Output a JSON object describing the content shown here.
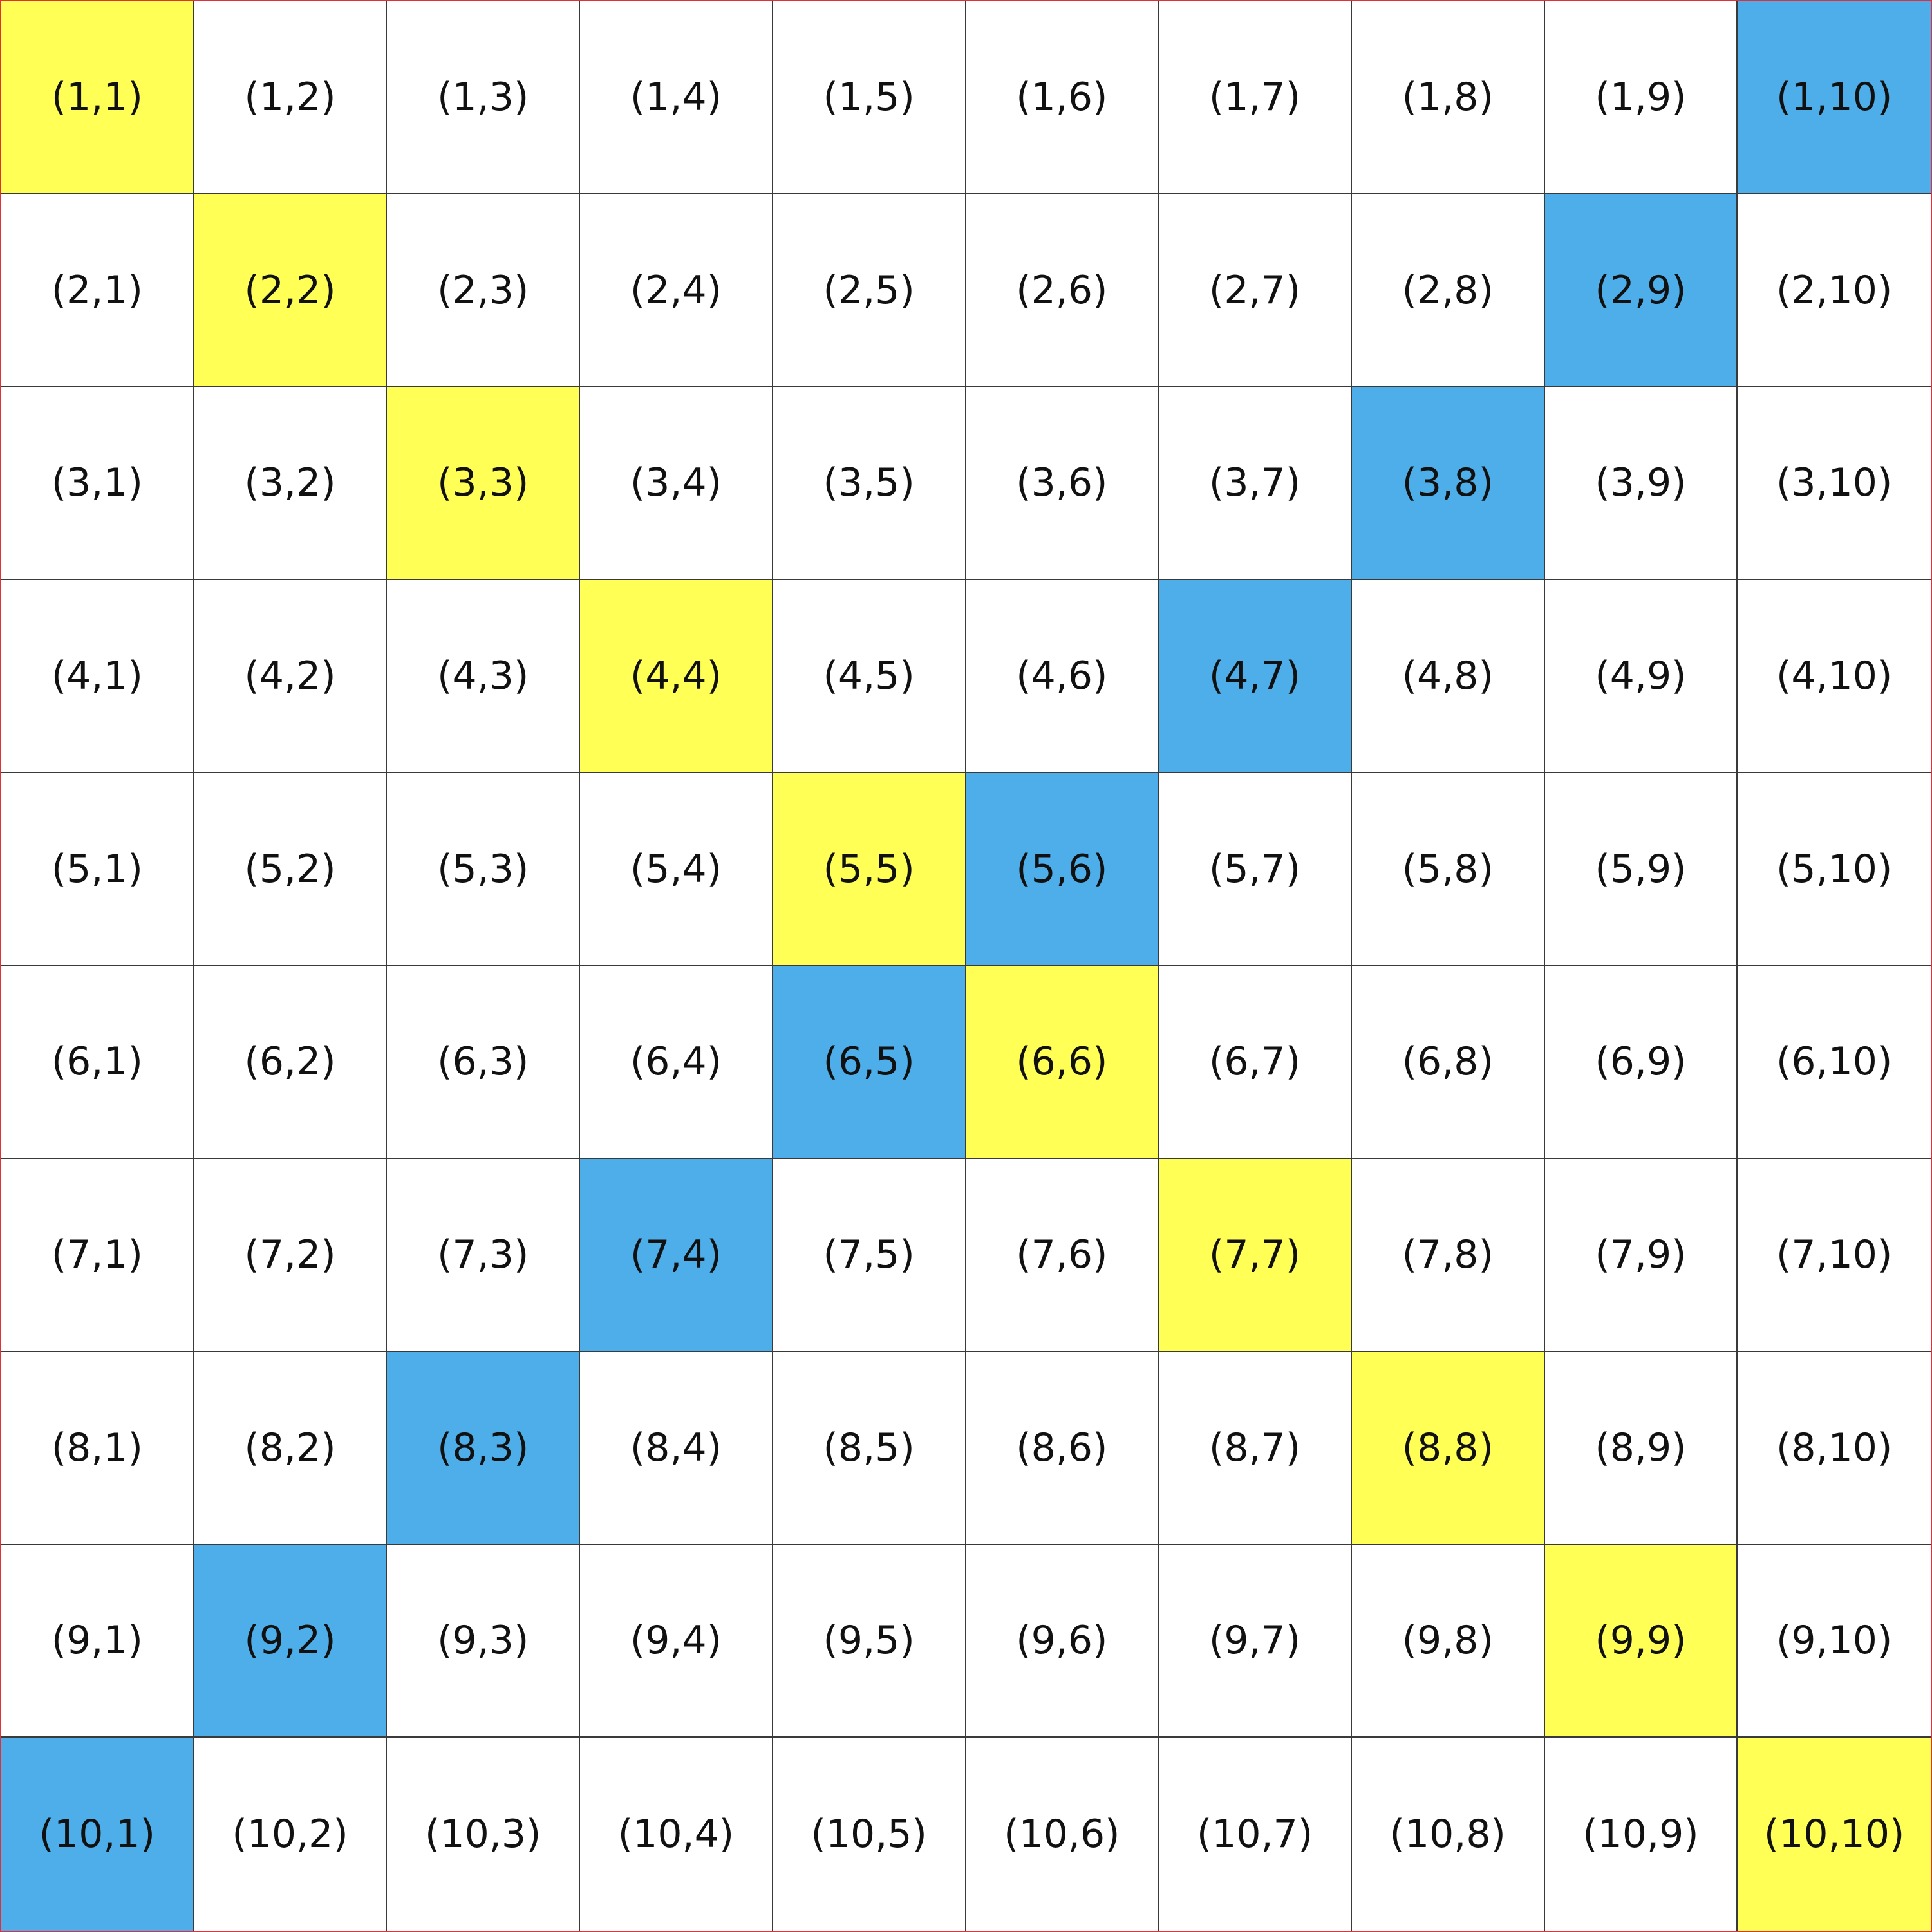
{
  "colors": {
    "default": "#ffffff",
    "main_diagonal": "#ffff55",
    "anti_diagonal": "#4eaee9",
    "text": "#111111",
    "grid_line": "#3a3a3a",
    "outer_border": "#e0303a"
  },
  "grid": {
    "rows": [
      {
        "cells": [
          {
            "label": "(1,1)",
            "fill": "main_diagonal"
          },
          {
            "label": "(1,2)",
            "fill": "default"
          },
          {
            "label": "(1,3)",
            "fill": "default"
          },
          {
            "label": "(1,4)",
            "fill": "default"
          },
          {
            "label": "(1,5)",
            "fill": "default"
          },
          {
            "label": "(1,6)",
            "fill": "default"
          },
          {
            "label": "(1,7)",
            "fill": "default"
          },
          {
            "label": "(1,8)",
            "fill": "default"
          },
          {
            "label": "(1,9)",
            "fill": "default"
          },
          {
            "label": "(1,10)",
            "fill": "anti_diagonal"
          }
        ]
      },
      {
        "cells": [
          {
            "label": "(2,1)",
            "fill": "default"
          },
          {
            "label": "(2,2)",
            "fill": "main_diagonal"
          },
          {
            "label": "(2,3)",
            "fill": "default"
          },
          {
            "label": "(2,4)",
            "fill": "default"
          },
          {
            "label": "(2,5)",
            "fill": "default"
          },
          {
            "label": "(2,6)",
            "fill": "default"
          },
          {
            "label": "(2,7)",
            "fill": "default"
          },
          {
            "label": "(2,8)",
            "fill": "default"
          },
          {
            "label": "(2,9)",
            "fill": "anti_diagonal"
          },
          {
            "label": "(2,10)",
            "fill": "default"
          }
        ]
      },
      {
        "cells": [
          {
            "label": "(3,1)",
            "fill": "default"
          },
          {
            "label": "(3,2)",
            "fill": "default"
          },
          {
            "label": "(3,3)",
            "fill": "main_diagonal"
          },
          {
            "label": "(3,4)",
            "fill": "default"
          },
          {
            "label": "(3,5)",
            "fill": "default"
          },
          {
            "label": "(3,6)",
            "fill": "default"
          },
          {
            "label": "(3,7)",
            "fill": "default"
          },
          {
            "label": "(3,8)",
            "fill": "anti_diagonal"
          },
          {
            "label": "(3,9)",
            "fill": "default"
          },
          {
            "label": "(3,10)",
            "fill": "default"
          }
        ]
      },
      {
        "cells": [
          {
            "label": "(4,1)",
            "fill": "default"
          },
          {
            "label": "(4,2)",
            "fill": "default"
          },
          {
            "label": "(4,3)",
            "fill": "default"
          },
          {
            "label": "(4,4)",
            "fill": "main_diagonal"
          },
          {
            "label": "(4,5)",
            "fill": "default"
          },
          {
            "label": "(4,6)",
            "fill": "default"
          },
          {
            "label": "(4,7)",
            "fill": "anti_diagonal"
          },
          {
            "label": "(4,8)",
            "fill": "default"
          },
          {
            "label": "(4,9)",
            "fill": "default"
          },
          {
            "label": "(4,10)",
            "fill": "default"
          }
        ]
      },
      {
        "cells": [
          {
            "label": "(5,1)",
            "fill": "default"
          },
          {
            "label": "(5,2)",
            "fill": "default"
          },
          {
            "label": "(5,3)",
            "fill": "default"
          },
          {
            "label": "(5,4)",
            "fill": "default"
          },
          {
            "label": "(5,5)",
            "fill": "main_diagonal"
          },
          {
            "label": "(5,6)",
            "fill": "anti_diagonal"
          },
          {
            "label": "(5,7)",
            "fill": "default"
          },
          {
            "label": "(5,8)",
            "fill": "default"
          },
          {
            "label": "(5,9)",
            "fill": "default"
          },
          {
            "label": "(5,10)",
            "fill": "default"
          }
        ]
      },
      {
        "cells": [
          {
            "label": "(6,1)",
            "fill": "default"
          },
          {
            "label": "(6,2)",
            "fill": "default"
          },
          {
            "label": "(6,3)",
            "fill": "default"
          },
          {
            "label": "(6,4)",
            "fill": "default"
          },
          {
            "label": "(6,5)",
            "fill": "anti_diagonal"
          },
          {
            "label": "(6,6)",
            "fill": "main_diagonal"
          },
          {
            "label": "(6,7)",
            "fill": "default"
          },
          {
            "label": "(6,8)",
            "fill": "default"
          },
          {
            "label": "(6,9)",
            "fill": "default"
          },
          {
            "label": "(6,10)",
            "fill": "default"
          }
        ]
      },
      {
        "cells": [
          {
            "label": "(7,1)",
            "fill": "default"
          },
          {
            "label": "(7,2)",
            "fill": "default"
          },
          {
            "label": "(7,3)",
            "fill": "default"
          },
          {
            "label": "(7,4)",
            "fill": "anti_diagonal"
          },
          {
            "label": "(7,5)",
            "fill": "default"
          },
          {
            "label": "(7,6)",
            "fill": "default"
          },
          {
            "label": "(7,7)",
            "fill": "main_diagonal"
          },
          {
            "label": "(7,8)",
            "fill": "default"
          },
          {
            "label": "(7,9)",
            "fill": "default"
          },
          {
            "label": "(7,10)",
            "fill": "default"
          }
        ]
      },
      {
        "cells": [
          {
            "label": "(8,1)",
            "fill": "default"
          },
          {
            "label": "(8,2)",
            "fill": "default"
          },
          {
            "label": "(8,3)",
            "fill": "anti_diagonal"
          },
          {
            "label": "(8,4)",
            "fill": "default"
          },
          {
            "label": "(8,5)",
            "fill": "default"
          },
          {
            "label": "(8,6)",
            "fill": "default"
          },
          {
            "label": "(8,7)",
            "fill": "default"
          },
          {
            "label": "(8,8)",
            "fill": "main_diagonal"
          },
          {
            "label": "(8,9)",
            "fill": "default"
          },
          {
            "label": "(8,10)",
            "fill": "default"
          }
        ]
      },
      {
        "cells": [
          {
            "label": "(9,1)",
            "fill": "default"
          },
          {
            "label": "(9,2)",
            "fill": "anti_diagonal"
          },
          {
            "label": "(9,3)",
            "fill": "default"
          },
          {
            "label": "(9,4)",
            "fill": "default"
          },
          {
            "label": "(9,5)",
            "fill": "default"
          },
          {
            "label": "(9,6)",
            "fill": "default"
          },
          {
            "label": "(9,7)",
            "fill": "default"
          },
          {
            "label": "(9,8)",
            "fill": "default"
          },
          {
            "label": "(9,9)",
            "fill": "main_diagonal"
          },
          {
            "label": "(9,10)",
            "fill": "default"
          }
        ]
      },
      {
        "cells": [
          {
            "label": "(10,1)",
            "fill": "anti_diagonal"
          },
          {
            "label": "(10,2)",
            "fill": "default"
          },
          {
            "label": "(10,3)",
            "fill": "default"
          },
          {
            "label": "(10,4)",
            "fill": "default"
          },
          {
            "label": "(10,5)",
            "fill": "default"
          },
          {
            "label": "(10,6)",
            "fill": "default"
          },
          {
            "label": "(10,7)",
            "fill": "default"
          },
          {
            "label": "(10,8)",
            "fill": "default"
          },
          {
            "label": "(10,9)",
            "fill": "default"
          },
          {
            "label": "(10,10)",
            "fill": "main_diagonal"
          }
        ]
      }
    ]
  }
}
